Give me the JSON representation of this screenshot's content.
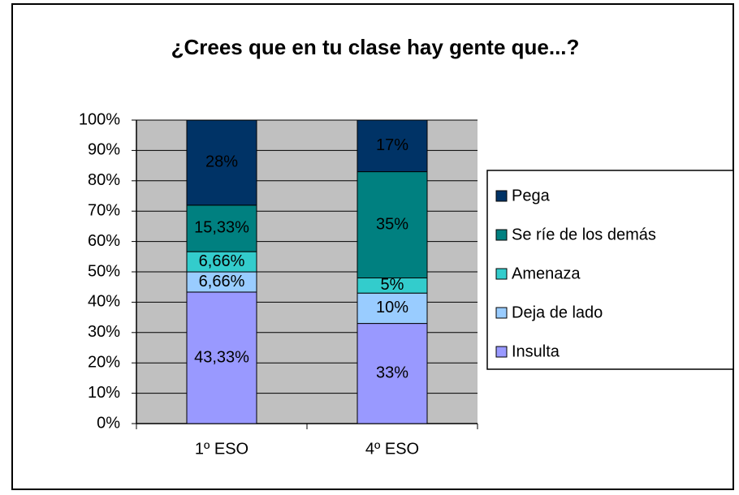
{
  "chart_data": {
    "type": "stacked_bar",
    "title": "¿Crees que en tu clase hay gente que...?",
    "categories": [
      "1º ESO",
      "4º ESO"
    ],
    "series": [
      {
        "name": "Insulta",
        "color": "#9999ff",
        "values": [
          43.33,
          33
        ],
        "value_labels": [
          "43,33%",
          "33%"
        ]
      },
      {
        "name": "Deja de lado",
        "color": "#99ccff",
        "values": [
          6.66,
          10
        ],
        "value_labels": [
          "6,66%",
          "10%"
        ]
      },
      {
        "name": "Amenaza",
        "color": "#33cccc",
        "values": [
          6.66,
          5
        ],
        "value_labels": [
          "6,66%",
          "5%"
        ]
      },
      {
        "name": "Se ríe de los demás",
        "color": "#008080",
        "values": [
          15.33,
          35
        ],
        "value_labels": [
          "15,33%",
          "35%"
        ]
      },
      {
        "name": "Pega",
        "color": "#003366",
        "values": [
          28,
          17
        ],
        "value_labels": [
          "28%",
          "17%"
        ]
      }
    ],
    "ylim": [
      0,
      100
    ],
    "yticks": [
      {
        "value": 0,
        "label": "0%"
      },
      {
        "value": 10,
        "label": "10%"
      },
      {
        "value": 20,
        "label": "20%"
      },
      {
        "value": 30,
        "label": "30%"
      },
      {
        "value": 40,
        "label": "40%"
      },
      {
        "value": 50,
        "label": "50%"
      },
      {
        "value": 60,
        "label": "60%"
      },
      {
        "value": 70,
        "label": "70%"
      },
      {
        "value": 80,
        "label": "80%"
      },
      {
        "value": 90,
        "label": "90%"
      },
      {
        "value": 100,
        "label": "100%"
      }
    ],
    "grid": true,
    "legend": "right",
    "plot_background": "#c0c0c0"
  }
}
